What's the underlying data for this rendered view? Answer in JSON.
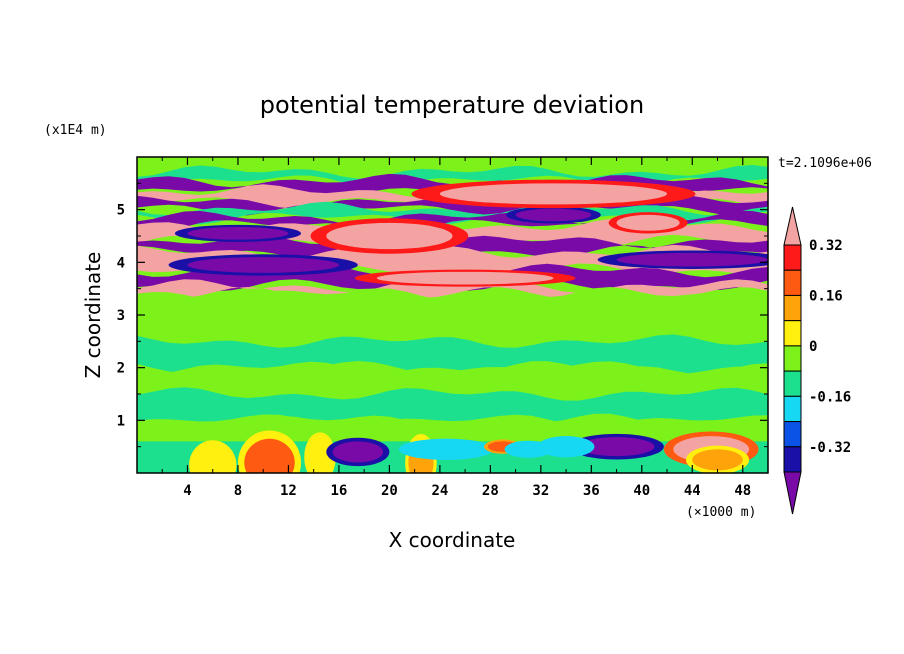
{
  "chart_data": {
    "type": "heatmap",
    "title": "potential temperature deviation",
    "xlabel": "X coordinate",
    "ylabel": "Z coordinate",
    "x_unit": "(×1000 m)",
    "y_unit": "(x1E4 m)",
    "time_label": "t=2.1096e+06",
    "xlim": [
      0,
      50
    ],
    "ylim": [
      0,
      6
    ],
    "x_ticks": [
      "4",
      "8",
      "12",
      "16",
      "20",
      "24",
      "28",
      "32",
      "36",
      "40",
      "44",
      "48"
    ],
    "y_ticks": [
      "1",
      "2",
      "3",
      "4",
      "5"
    ],
    "colorbar": {
      "levels": [
        -0.4,
        -0.32,
        -0.24,
        -0.16,
        -0.08,
        0,
        0.08,
        0.16,
        0.24,
        0.32,
        0.4
      ],
      "labels": [
        "0.32",
        "0.16",
        "0",
        "-0.16",
        "-0.32"
      ],
      "colors": [
        "#7a0aa8",
        "#1a0fa6",
        "#0b52e6",
        "#16d8f2",
        "#1de08f",
        "#7cf21a",
        "#fff00f",
        "#ffa30a",
        "#ff5a12",
        "#ff1a1a",
        "#f4a3a3"
      ]
    },
    "bands": [
      {
        "z0": 5.72,
        "z1": 6.0,
        "value": 0.02
      },
      {
        "z0": 5.55,
        "z1": 5.72,
        "value": -0.05
      },
      {
        "z0": 5.35,
        "z1": 5.55,
        "value": -0.38
      },
      {
        "z0": 5.15,
        "z1": 5.35,
        "value": 0.45
      },
      {
        "z0": 5.02,
        "z1": 5.15,
        "value": -0.38
      },
      {
        "z0": 4.85,
        "z1": 5.02,
        "value": -0.05
      },
      {
        "z0": 4.7,
        "z1": 4.85,
        "value": -0.38
      },
      {
        "z0": 4.4,
        "z1": 4.7,
        "value": 0.45
      },
      {
        "z0": 4.2,
        "z1": 4.4,
        "value": -0.38
      },
      {
        "z0": 3.85,
        "z1": 4.2,
        "value": 0.45
      },
      {
        "z0": 3.55,
        "z1": 3.85,
        "value": -0.38
      },
      {
        "z0": 3.4,
        "z1": 3.55,
        "value": 0.45
      },
      {
        "z0": 3.0,
        "z1": 3.4,
        "value": 0.03
      },
      {
        "z0": 2.5,
        "z1": 3.0,
        "value": 0.05
      },
      {
        "z0": 2.0,
        "z1": 2.5,
        "value": -0.02
      },
      {
        "z0": 1.5,
        "z1": 2.0,
        "value": 0.03
      },
      {
        "z0": 1.0,
        "z1": 1.5,
        "value": -0.03
      },
      {
        "z0": 0.6,
        "z1": 1.0,
        "value": 0.02
      },
      {
        "z0": 0.0,
        "z1": 0.6,
        "value": -0.02
      }
    ],
    "features": [
      {
        "x": 6,
        "z": 0.15,
        "rx": 1.5,
        "rz": 0.35,
        "value": 0.15
      },
      {
        "x": 10.5,
        "z": 0.2,
        "rx": 2.0,
        "rz": 0.45,
        "value": 0.25
      },
      {
        "x": 14.5,
        "z": 0.3,
        "rx": 1.0,
        "rz": 0.35,
        "value": 0.12
      },
      {
        "x": 17.5,
        "z": 0.4,
        "rx": 2.0,
        "rz": 0.2,
        "value": -0.38
      },
      {
        "x": 22.5,
        "z": 0.2,
        "rx": 1.0,
        "rz": 0.4,
        "value": 0.2
      },
      {
        "x": 24.5,
        "z": 0.45,
        "rx": 3.0,
        "rz": 0.15,
        "value": -0.14
      },
      {
        "x": 29,
        "z": 0.5,
        "rx": 1.2,
        "rz": 0.1,
        "value": 0.3
      },
      {
        "x": 31,
        "z": 0.45,
        "rx": 1.5,
        "rz": 0.12,
        "value": -0.14
      },
      {
        "x": 38,
        "z": 0.5,
        "rx": 3.0,
        "rz": 0.18,
        "value": -0.38
      },
      {
        "x": 34,
        "z": 0.5,
        "rx": 1.8,
        "rz": 0.15,
        "value": -0.14
      },
      {
        "x": 45.5,
        "z": 0.45,
        "rx": 3.0,
        "rz": 0.25,
        "value": 0.4
      },
      {
        "x": 46,
        "z": 0.25,
        "rx": 2.0,
        "rz": 0.2,
        "value": 0.16
      },
      {
        "x": 20,
        "z": 4.5,
        "rx": 5.0,
        "rz": 0.25,
        "value": 0.45
      },
      {
        "x": 33,
        "z": 4.9,
        "rx": 3.0,
        "rz": 0.12,
        "value": -0.38
      },
      {
        "x": 40.5,
        "z": 4.75,
        "rx": 2.5,
        "rz": 0.15,
        "value": 0.45
      },
      {
        "x": 8,
        "z": 4.55,
        "rx": 4.0,
        "rz": 0.12,
        "value": -0.38
      },
      {
        "x": 33,
        "z": 5.3,
        "rx": 9.0,
        "rz": 0.2,
        "value": 0.45
      },
      {
        "x": 10,
        "z": 3.95,
        "rx": 6.0,
        "rz": 0.15,
        "value": -0.38
      },
      {
        "x": 26,
        "z": 3.7,
        "rx": 7.0,
        "rz": 0.12,
        "value": 0.45
      },
      {
        "x": 44,
        "z": 4.05,
        "rx": 6.0,
        "rz": 0.13,
        "value": -0.38
      }
    ]
  }
}
